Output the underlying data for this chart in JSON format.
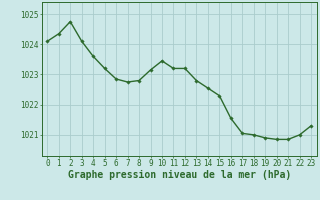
{
  "x": [
    0,
    1,
    2,
    3,
    4,
    5,
    6,
    7,
    8,
    9,
    10,
    11,
    12,
    13,
    14,
    15,
    16,
    17,
    18,
    19,
    20,
    21,
    22,
    23
  ],
  "y": [
    1024.1,
    1024.35,
    1024.75,
    1024.1,
    1023.6,
    1023.2,
    1022.85,
    1022.75,
    1022.8,
    1023.15,
    1023.45,
    1023.2,
    1023.2,
    1022.8,
    1022.55,
    1022.3,
    1021.55,
    1021.05,
    1021.0,
    1020.9,
    1020.85,
    1020.85,
    1021.0,
    1021.3
  ],
  "line_color": "#2d6a2d",
  "marker": "D",
  "marker_size": 1.8,
  "line_width": 1.0,
  "background_color": "#cce8e8",
  "grid_color": "#aacccc",
  "xlabel": "Graphe pression niveau de la mer (hPa)",
  "xlabel_fontsize": 7.0,
  "ylabel_labels": [
    "1021",
    "1022",
    "1023",
    "1024",
    "1025"
  ],
  "ylim": [
    1020.3,
    1025.4
  ],
  "xlim": [
    -0.5,
    23.5
  ],
  "xtick_labels": [
    "0",
    "1",
    "2",
    "3",
    "4",
    "5",
    "6",
    "7",
    "8",
    "9",
    "10",
    "11",
    "12",
    "13",
    "14",
    "15",
    "16",
    "17",
    "18",
    "19",
    "20",
    "21",
    "22",
    "23"
  ],
  "yticks": [
    1021,
    1022,
    1023,
    1024,
    1025
  ],
  "tick_fontsize": 5.5,
  "title": ""
}
